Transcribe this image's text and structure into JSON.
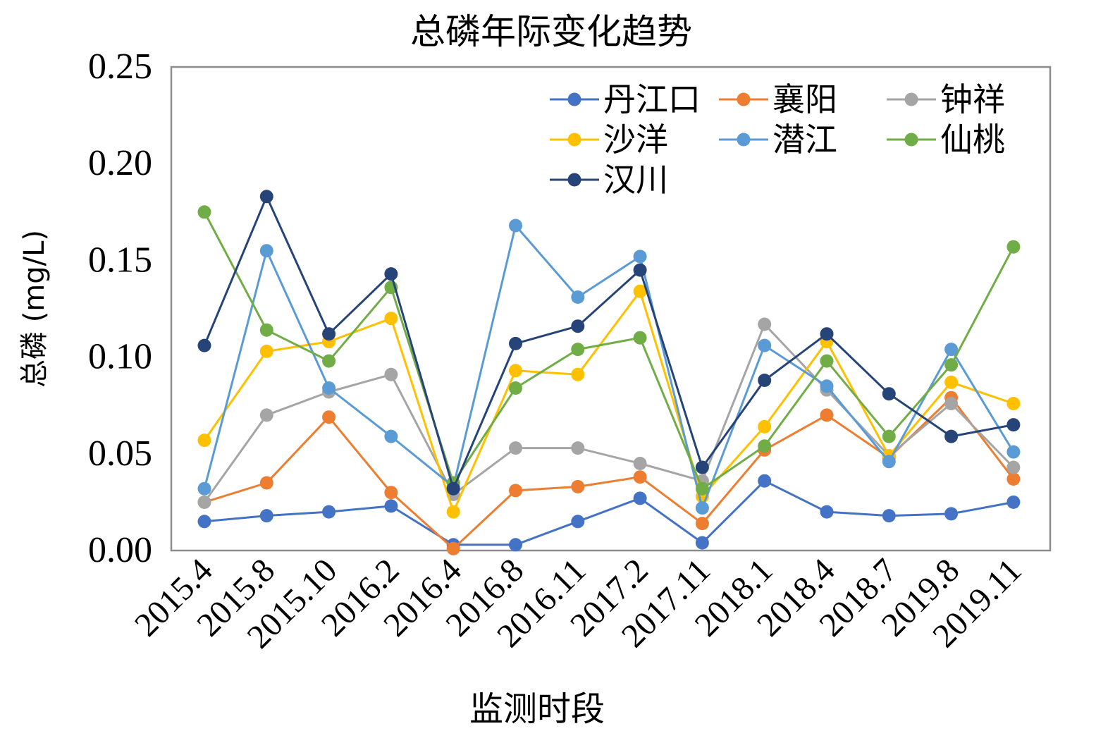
{
  "chart_data": {
    "type": "line",
    "title": "总磷年际变化趋势",
    "xlabel": "监测时段",
    "ylabel": "总磷 (mg/L)",
    "ylim": [
      0,
      0.25
    ],
    "yticks": [
      "0.00",
      "0.05",
      "0.10",
      "0.15",
      "0.20",
      "0.25"
    ],
    "grid": false,
    "legend_position": "top-right",
    "categories": [
      "2015.4",
      "2015.8",
      "2015.10",
      "2016.2",
      "2016.4",
      "2016.8",
      "2016.11",
      "2017.2",
      "2017.11",
      "2018.1",
      "2018.4",
      "2018.7",
      "2019.8",
      "2019.11"
    ],
    "series": [
      {
        "name": "丹江口",
        "color": "#4472c4",
        "values": [
          0.015,
          0.018,
          0.02,
          0.023,
          0.003,
          0.003,
          0.015,
          0.027,
          0.004,
          0.036,
          0.02,
          0.018,
          0.019,
          0.025
        ]
      },
      {
        "name": "襄阳",
        "color": "#ed7d31",
        "values": [
          0.025,
          0.035,
          0.069,
          0.03,
          0.001,
          0.031,
          0.033,
          0.038,
          0.014,
          0.052,
          0.07,
          0.048,
          0.079,
          0.037
        ]
      },
      {
        "name": "钟祥",
        "color": "#a5a5a5",
        "values": [
          0.025,
          0.07,
          0.082,
          0.091,
          0.029,
          0.053,
          0.053,
          0.045,
          0.036,
          0.117,
          0.083,
          0.049,
          0.076,
          0.043
        ]
      },
      {
        "name": "沙洋",
        "color": "#ffc000",
        "values": [
          0.057,
          0.103,
          0.108,
          0.12,
          0.02,
          0.093,
          0.091,
          0.134,
          0.028,
          0.064,
          0.108,
          0.049,
          0.087,
          0.076
        ]
      },
      {
        "name": "潜江",
        "color": "#5b9bd5",
        "values": [
          0.032,
          0.155,
          0.084,
          0.059,
          0.033,
          0.168,
          0.131,
          0.152,
          0.022,
          0.106,
          0.085,
          0.046,
          0.104,
          0.051
        ]
      },
      {
        "name": "仙桃",
        "color": "#70ad47",
        "values": [
          0.175,
          0.114,
          0.098,
          0.136,
          0.035,
          0.084,
          0.104,
          0.11,
          0.032,
          0.054,
          0.098,
          0.059,
          0.096,
          0.157
        ]
      },
      {
        "name": "汉川",
        "color": "#264478",
        "values": [
          0.106,
          0.183,
          0.112,
          0.143,
          0.032,
          0.107,
          0.116,
          0.145,
          0.043,
          0.088,
          0.112,
          0.081,
          0.059,
          0.065
        ]
      }
    ]
  }
}
